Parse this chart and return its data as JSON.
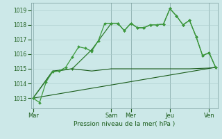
{
  "bg_color": "#cce8e8",
  "grid_color": "#aacccc",
  "line_color_dark": "#1a5c1a",
  "line_color_mid": "#2d7a2d",
  "line_color_bright": "#3d9a3d",
  "title": "Pression niveau de la mer( hPa )",
  "ylim": [
    1012.3,
    1019.5
  ],
  "yticks": [
    1013,
    1014,
    1015,
    1016,
    1017,
    1018,
    1019
  ],
  "xtick_labels": [
    "Mar",
    "Sam",
    "Mer",
    "Jeu",
    "Ven"
  ],
  "xtick_positions": [
    0,
    12,
    15,
    21,
    27
  ],
  "xmax": 28,
  "series1_x": [
    0,
    1,
    2,
    3,
    4,
    5,
    6,
    7,
    8,
    9,
    10,
    11,
    12,
    13,
    14,
    15,
    16,
    17,
    18,
    19,
    20,
    21,
    22,
    23,
    24,
    25,
    26,
    27,
    28
  ],
  "series1_y": [
    1013.0,
    1012.7,
    1014.1,
    1014.8,
    1014.85,
    1015.1,
    1015.8,
    1016.5,
    1016.4,
    1016.2,
    1016.9,
    1018.1,
    1018.1,
    1018.1,
    1017.6,
    1018.1,
    1017.8,
    1017.8,
    1018.0,
    1018.0,
    1018.05,
    1019.1,
    1018.6,
    1018.0,
    1018.3,
    1017.2,
    1015.9,
    1016.1,
    1015.1
  ],
  "series2_x": [
    0,
    3,
    6,
    9,
    12,
    13,
    14,
    15,
    16,
    17,
    18,
    19,
    20,
    21,
    22,
    23,
    24,
    25,
    26,
    27,
    28
  ],
  "series2_y": [
    1013.0,
    1014.8,
    1015.0,
    1016.3,
    1018.1,
    1018.1,
    1017.6,
    1018.1,
    1017.8,
    1017.8,
    1018.0,
    1018.0,
    1018.05,
    1019.1,
    1018.6,
    1018.0,
    1018.3,
    1017.2,
    1015.9,
    1016.1,
    1015.1
  ],
  "series3_x": [
    0,
    3,
    6,
    9,
    12,
    15,
    17,
    19,
    21,
    24,
    27,
    28
  ],
  "series3_y": [
    1013.0,
    1014.85,
    1015.0,
    1014.85,
    1015.0,
    1015.0,
    1015.0,
    1015.0,
    1015.0,
    1015.0,
    1015.05,
    1015.1
  ],
  "series4_x": [
    0,
    28
  ],
  "series4_y": [
    1013.0,
    1015.1
  ],
  "vlines": [
    0,
    12,
    15,
    21,
    27
  ]
}
